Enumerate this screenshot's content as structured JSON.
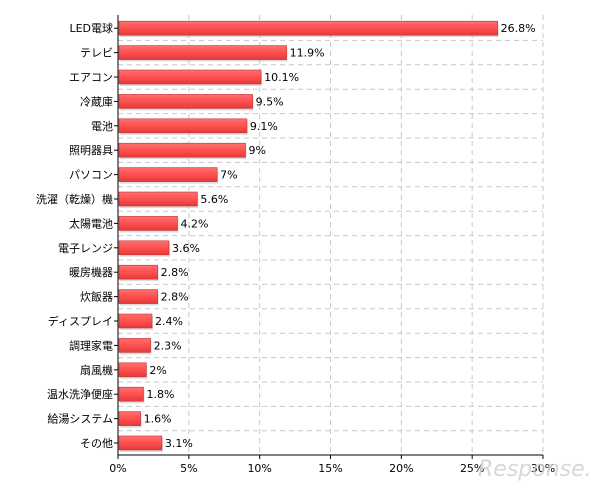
{
  "chart_data": {
    "type": "bar",
    "orientation": "horizontal",
    "categories": [
      "LED電球",
      "テレビ",
      "エアコン",
      "冷蔵庫",
      "電池",
      "照明器具",
      "パソコン",
      "洗濯（乾燥）機",
      "太陽電池",
      "電子レンジ",
      "暖房機器",
      "炊飯器",
      "ディスプレイ",
      "調理家電",
      "扇風機",
      "温水洗浄便座",
      "給湯システム",
      "その他"
    ],
    "values": [
      26.8,
      11.9,
      10.1,
      9.5,
      9.1,
      9,
      7,
      5.6,
      4.2,
      3.6,
      2.8,
      2.8,
      2.4,
      2.3,
      2,
      1.8,
      1.6,
      3.1
    ],
    "value_labels": [
      "26.8%",
      "11.9%",
      "10.1%",
      "9.5%",
      "9.1%",
      "9%",
      "7%",
      "5.6%",
      "4.2%",
      "3.6%",
      "2.8%",
      "2.8%",
      "2.4%",
      "2.3%",
      "2%",
      "1.8%",
      "1.6%",
      "3.1%"
    ],
    "xlim": [
      0,
      30
    ],
    "xticks": [
      0,
      5,
      10,
      15,
      20,
      25,
      30
    ],
    "xtick_labels": [
      "0%",
      "5%",
      "10%",
      "15%",
      "20%",
      "25%",
      "30%"
    ],
    "grid": true,
    "title": "",
    "xlabel": "",
    "ylabel": "",
    "bar_color": "#ff4d4d",
    "bar_edge_color": "#c83232"
  },
  "watermark": {
    "text": "Response."
  }
}
